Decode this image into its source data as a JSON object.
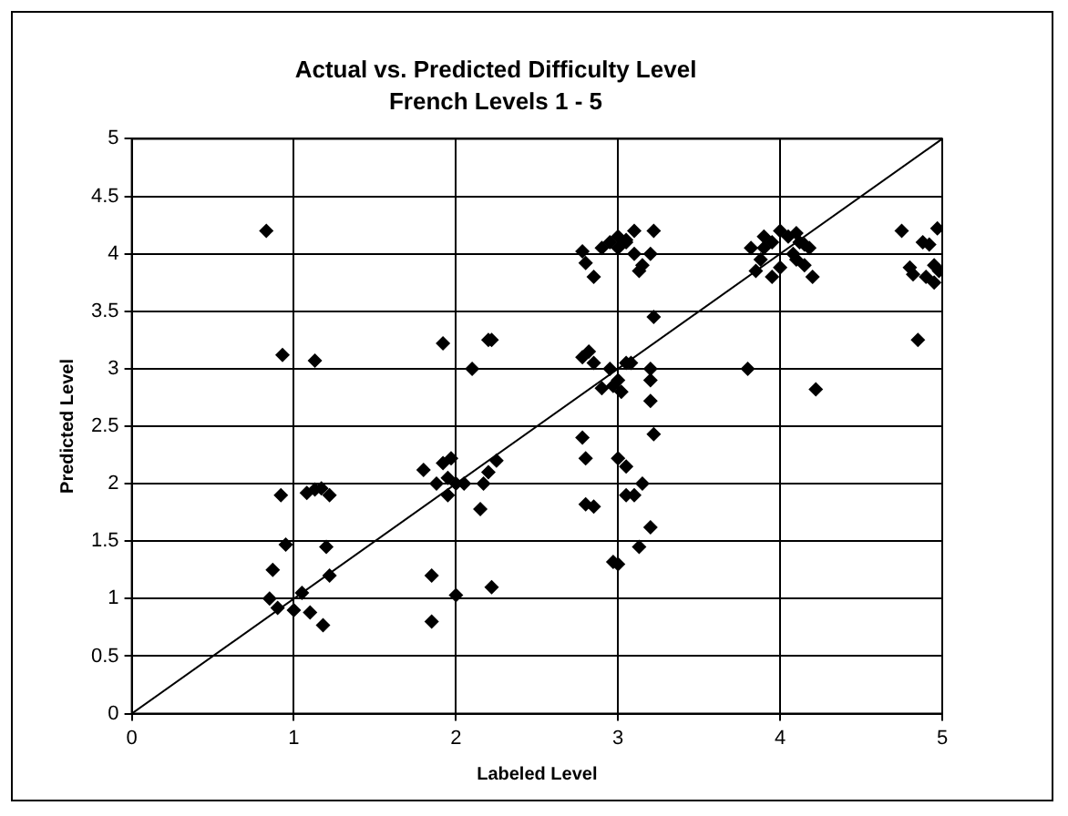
{
  "chart_data": {
    "type": "scatter",
    "title": "Actual vs. Predicted Difficulty Level",
    "subtitle": "French Levels 1 - 5",
    "xlabel": "Labeled Level",
    "ylabel": "Predicted Level",
    "xlim": [
      0,
      5
    ],
    "xticks": [
      0,
      1,
      2,
      3,
      4,
      5
    ],
    "ylim": [
      0,
      5
    ],
    "yticks": [
      0,
      0.5,
      1,
      1.5,
      2,
      2.5,
      3,
      3.5,
      4,
      4.5,
      5
    ],
    "grid": true,
    "legend": false,
    "marker": "diamond",
    "series": [
      {
        "type": "scatter",
        "color": "#000000",
        "x": [
          0.83,
          0.93,
          1.13,
          0.92,
          0.95,
          0.87,
          0.85,
          0.9,
          1.0,
          1.05,
          1.1,
          1.08,
          1.13,
          1.17,
          1.22,
          1.2,
          1.22,
          1.18,
          1.85,
          1.85,
          1.8,
          1.88,
          1.92,
          1.97,
          1.95,
          2.0,
          2.05,
          1.95,
          1.92,
          2.1,
          2.22,
          2.2,
          2.2,
          2.25,
          2.22,
          2.17,
          2.15,
          2.0,
          2.78,
          2.8,
          2.8,
          2.85,
          2.78,
          2.82,
          2.85,
          2.9,
          2.95,
          3.0,
          2.97,
          3.02,
          3.05,
          3.08,
          3.0,
          3.05,
          3.1,
          3.15,
          3.05,
          2.97,
          3.0,
          3.13,
          3.2,
          3.2,
          3.2,
          3.2,
          3.22,
          3.22,
          2.78,
          2.8,
          2.85,
          2.9,
          2.95,
          3.0,
          3.05,
          3.1,
          3.1,
          3.15,
          3.13,
          3.2,
          3.22,
          3.0,
          3.05,
          3.8,
          3.85,
          3.88,
          3.9,
          3.95,
          3.95,
          4.0,
          4.05,
          4.08,
          4.1,
          4.15,
          4.12,
          4.18,
          4.2,
          4.22,
          3.82,
          4.0,
          3.9,
          4.1,
          4.15,
          4.75,
          4.82,
          4.8,
          4.85,
          4.88,
          4.92,
          4.9,
          4.97,
          4.95,
          4.98,
          4.95
        ],
        "values": [
          4.2,
          3.12,
          3.07,
          1.9,
          1.47,
          1.25,
          1.0,
          0.92,
          0.9,
          1.05,
          0.88,
          1.92,
          1.95,
          1.96,
          1.9,
          1.45,
          1.2,
          0.77,
          0.8,
          1.2,
          2.12,
          2.0,
          2.18,
          2.22,
          2.05,
          2.0,
          2.0,
          1.9,
          3.22,
          3.0,
          3.25,
          3.25,
          2.1,
          2.2,
          1.1,
          2.0,
          1.78,
          1.03,
          2.4,
          2.22,
          1.82,
          1.8,
          3.1,
          3.15,
          3.05,
          2.83,
          3.0,
          2.9,
          2.85,
          2.8,
          3.05,
          3.05,
          2.22,
          2.15,
          1.9,
          2.0,
          1.9,
          1.32,
          1.3,
          1.45,
          1.62,
          2.72,
          2.9,
          3.0,
          2.43,
          3.45,
          4.02,
          3.92,
          3.8,
          4.05,
          4.1,
          4.15,
          4.12,
          4.2,
          4.0,
          3.9,
          3.85,
          4.0,
          4.2,
          4.05,
          4.1,
          3.0,
          3.85,
          3.95,
          4.05,
          4.1,
          3.8,
          4.2,
          4.15,
          4.0,
          3.95,
          3.9,
          4.1,
          4.05,
          3.8,
          2.82,
          4.05,
          3.88,
          4.15,
          4.18,
          4.08,
          4.2,
          3.82,
          3.88,
          3.25,
          4.1,
          4.08,
          3.8,
          4.22,
          3.75,
          3.85,
          3.9
        ]
      },
      {
        "type": "line",
        "color": "#000000",
        "marker": "none",
        "x": [
          0,
          5
        ],
        "values": [
          0,
          5
        ]
      }
    ]
  }
}
